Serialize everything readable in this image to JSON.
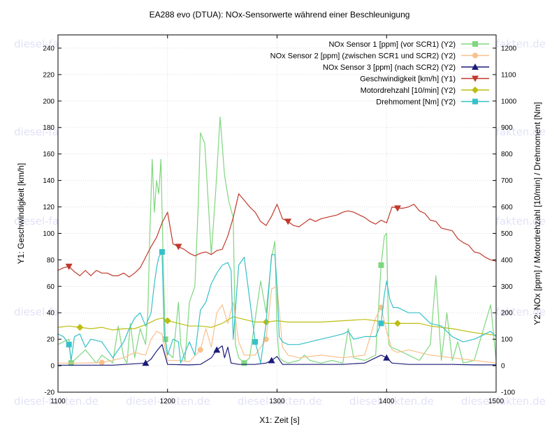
{
  "chart_data": {
    "type": "line",
    "title": "EA288 evo (DTUA): NOx-Sensorwerte während einer Beschleunigung",
    "xlabel": "X1: Zeit [s]",
    "ylabel": "Y1: Geschwindigkeit [km/h]",
    "y2label": "Y2: NOx [ppm] / Motordrehzahl [10/min] / Drehmoment [Nm]",
    "xlim": [
      1100,
      1500
    ],
    "ylim": [
      -20,
      250
    ],
    "y2lim": [
      -100,
      1250
    ],
    "xticks": [
      1100,
      1200,
      1300,
      1400,
      1500
    ],
    "yticks": [
      -20,
      0,
      20,
      40,
      60,
      80,
      100,
      120,
      140,
      160,
      180,
      200,
      220,
      240
    ],
    "y2ticks": [
      -100,
      0,
      100,
      200,
      300,
      400,
      500,
      600,
      700,
      800,
      900,
      1000,
      1100,
      1200
    ],
    "grid": true,
    "legend_position": "top-right",
    "watermark": "diesel-fakten.de",
    "series": [
      {
        "name": "NOx Sensor 1 [ppm] (vor SCR1) (Y2)",
        "axis": "y2",
        "color": "#7fd67f",
        "marker": "square",
        "x": [
          1100,
          1110,
          1112,
          1125,
          1135,
          1140,
          1150,
          1155,
          1160,
          1163,
          1166,
          1170,
          1175,
          1180,
          1182,
          1184,
          1186,
          1188,
          1190,
          1192,
          1194,
          1196,
          1198,
          1200,
          1205,
          1210,
          1212,
          1216,
          1220,
          1225,
          1228,
          1230,
          1234,
          1236,
          1240,
          1244,
          1248,
          1252,
          1256,
          1260,
          1262,
          1265,
          1270,
          1275,
          1285,
          1290,
          1295,
          1298,
          1300,
          1302,
          1305,
          1310,
          1320,
          1325,
          1330,
          1340,
          1350,
          1360,
          1365,
          1370,
          1380,
          1390,
          1395,
          1398,
          1400,
          1402,
          1404,
          1410,
          1420,
          1430,
          1440,
          1445,
          1450,
          1455,
          1460,
          1465,
          1470,
          1480,
          1490,
          1495,
          1500
        ],
        "y": [
          80,
          100,
          10,
          60,
          10,
          40,
          10,
          150,
          30,
          10,
          160,
          30,
          140,
          80,
          200,
          520,
          780,
          580,
          700,
          650,
          780,
          400,
          100,
          50,
          30,
          240,
          80,
          20,
          240,
          300,
          600,
          880,
          840,
          700,
          420,
          660,
          940,
          720,
          620,
          560,
          80,
          30,
          10,
          30,
          320,
          200,
          410,
          470,
          130,
          30,
          20,
          10,
          20,
          40,
          20,
          10,
          20,
          10,
          140,
          30,
          20,
          40,
          380,
          490,
          500,
          80,
          70,
          60,
          40,
          20,
          80,
          340,
          20,
          200,
          20,
          90,
          10,
          20,
          160,
          230,
          20
        ]
      },
      {
        "name": "NOx Sensor 2 [ppm] (zwischen SCR1 und SCR2) (Y2)",
        "axis": "y2",
        "color": "#f9c08a",
        "marker": "circle",
        "x": [
          1100,
          1120,
          1140,
          1160,
          1170,
          1180,
          1185,
          1190,
          1195,
          1200,
          1210,
          1220,
          1230,
          1235,
          1240,
          1245,
          1250,
          1255,
          1260,
          1265,
          1270,
          1280,
          1290,
          1295,
          1300,
          1305,
          1310,
          1320,
          1340,
          1360,
          1380,
          1390,
          1395,
          1400,
          1405,
          1410,
          1420,
          1440,
          1460,
          1480,
          1500
        ],
        "y": [
          10,
          10,
          12,
          30,
          50,
          40,
          100,
          130,
          120,
          20,
          20,
          15,
          60,
          140,
          70,
          200,
          230,
          160,
          240,
          90,
          40,
          40,
          100,
          290,
          300,
          70,
          40,
          30,
          40,
          30,
          40,
          180,
          220,
          130,
          60,
          50,
          60,
          40,
          30,
          20,
          10
        ]
      },
      {
        "name": "NOx Sensor 3 [ppm] (nach SCR2) (Y2)",
        "axis": "y2",
        "color": "#1b1b7a",
        "marker": "triangle-up",
        "x": [
          1100,
          1150,
          1180,
          1185,
          1190,
          1195,
          1200,
          1220,
          1230,
          1240,
          1245,
          1250,
          1252,
          1255,
          1258,
          1265,
          1280,
          1290,
          1295,
          1300,
          1305,
          1320,
          1360,
          1380,
          1390,
          1395,
          1400,
          1405,
          1420,
          1440,
          1460,
          1480,
          1500
        ],
        "y": [
          2,
          2,
          10,
          25,
          55,
          80,
          5,
          3,
          5,
          30,
          60,
          75,
          30,
          70,
          10,
          5,
          5,
          10,
          20,
          35,
          5,
          5,
          5,
          10,
          30,
          40,
          30,
          10,
          5,
          5,
          5,
          3,
          3
        ]
      },
      {
        "name": "Geschwindigkeit [km/h] (Y1)",
        "axis": "y1",
        "color": "#c0392b",
        "marker": "triangle-down",
        "x": [
          1100,
          1105,
          1110,
          1115,
          1120,
          1125,
          1130,
          1135,
          1140,
          1145,
          1150,
          1155,
          1160,
          1165,
          1170,
          1175,
          1180,
          1185,
          1190,
          1195,
          1200,
          1205,
          1210,
          1215,
          1220,
          1225,
          1230,
          1235,
          1240,
          1245,
          1250,
          1255,
          1260,
          1265,
          1270,
          1275,
          1280,
          1285,
          1290,
          1295,
          1300,
          1305,
          1310,
          1315,
          1320,
          1325,
          1330,
          1335,
          1340,
          1345,
          1350,
          1355,
          1360,
          1365,
          1370,
          1375,
          1380,
          1385,
          1390,
          1395,
          1400,
          1405,
          1410,
          1415,
          1420,
          1425,
          1430,
          1435,
          1440,
          1445,
          1450,
          1455,
          1460,
          1465,
          1470,
          1475,
          1480,
          1485,
          1490,
          1495,
          1500
        ],
        "y": [
          72,
          74,
          75,
          71,
          68,
          72,
          68,
          72,
          70,
          70,
          68,
          68,
          70,
          67,
          70,
          74,
          82,
          90,
          97,
          108,
          116,
          92,
          90,
          88,
          85,
          83,
          85,
          86,
          84,
          87,
          88,
          98,
          112,
          130,
          125,
          120,
          116,
          109,
          106,
          113,
          122,
          111,
          109,
          106,
          105,
          108,
          111,
          109,
          111,
          112,
          113,
          114,
          116,
          117,
          116,
          114,
          112,
          109,
          107,
          110,
          108,
          120,
          119,
          119,
          120,
          122,
          117,
          115,
          110,
          109,
          104,
          103,
          102,
          96,
          93,
          91,
          86,
          85,
          82,
          80,
          79
        ]
      },
      {
        "name": "Motordrehzahl [10/min] (Y2)",
        "axis": "y2",
        "color": "#bdbd10",
        "marker": "diamond",
        "x": [
          1100,
          1110,
          1120,
          1130,
          1140,
          1150,
          1160,
          1170,
          1180,
          1190,
          1195,
          1200,
          1210,
          1220,
          1230,
          1240,
          1250,
          1260,
          1270,
          1280,
          1290,
          1300,
          1310,
          1320,
          1340,
          1360,
          1380,
          1390,
          1400,
          1410,
          1420,
          1430,
          1440,
          1460,
          1480,
          1500
        ],
        "y": [
          145,
          150,
          145,
          140,
          145,
          135,
          140,
          140,
          155,
          175,
          180,
          170,
          160,
          150,
          150,
          145,
          160,
          185,
          175,
          165,
          165,
          170,
          165,
          165,
          165,
          170,
          175,
          170,
          160,
          160,
          160,
          160,
          150,
          140,
          125,
          115
        ]
      },
      {
        "name": "Drehmoment    [Nm] (Y2)",
        "axis": "y2",
        "color": "#35c1c9",
        "marker": "square",
        "x": [
          1100,
          1105,
          1110,
          1112,
          1115,
          1120,
          1125,
          1130,
          1140,
          1145,
          1150,
          1160,
          1165,
          1170,
          1175,
          1180,
          1185,
          1188,
          1190,
          1192,
          1195,
          1197,
          1200,
          1205,
          1210,
          1212,
          1220,
          1225,
          1230,
          1235,
          1240,
          1245,
          1250,
          1255,
          1258,
          1260,
          1265,
          1270,
          1280,
          1285,
          1290,
          1295,
          1298,
          1300,
          1302,
          1305,
          1310,
          1320,
          1330,
          1340,
          1350,
          1360,
          1365,
          1370,
          1380,
          1390,
          1395,
          1398,
          1400,
          1403,
          1406,
          1410,
          1420,
          1430,
          1440,
          1450,
          1460,
          1470,
          1480,
          1485,
          1490,
          1495,
          1500
        ],
        "y": [
          120,
          110,
          80,
          20,
          110,
          120,
          70,
          100,
          90,
          60,
          30,
          90,
          140,
          180,
          200,
          150,
          200,
          310,
          370,
          410,
          430,
          120,
          40,
          100,
          90,
          10,
          90,
          40,
          210,
          240,
          310,
          350,
          380,
          390,
          360,
          100,
          380,
          410,
          90,
          10,
          160,
          420,
          420,
          300,
          110,
          90,
          80,
          80,
          90,
          100,
          110,
          120,
          130,
          100,
          110,
          110,
          160,
          270,
          320,
          250,
          220,
          220,
          200,
          200,
          160,
          150,
          110,
          90,
          100,
          110,
          120,
          130,
          110
        ]
      }
    ]
  }
}
